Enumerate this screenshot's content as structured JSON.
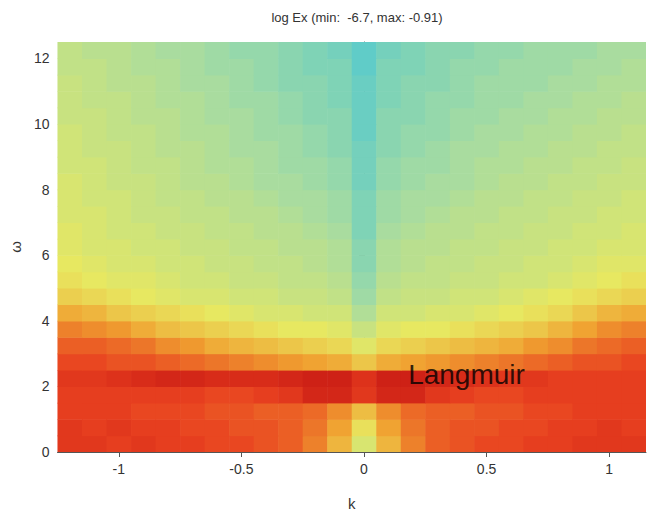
{
  "chart_data": {
    "type": "heatmap",
    "title": "log Ex (min:  -6.7, max: -0.91)",
    "x_label": "k",
    "y_label": "ω",
    "x": [
      -1.2,
      -1.1,
      -1.0,
      -0.9,
      -0.8,
      -0.7,
      -0.6,
      -0.5,
      -0.4,
      -0.3,
      -0.2,
      -0.1,
      0.0,
      0.1,
      0.2,
      0.3,
      0.4,
      0.5,
      0.6,
      0.7,
      0.8,
      0.9,
      1.0,
      1.1
    ],
    "y": [
      0.25,
      0.75,
      1.25,
      1.75,
      2.25,
      2.75,
      3.25,
      3.75,
      4.25,
      4.75,
      5.25,
      5.75,
      6.25,
      6.75,
      7.25,
      7.75,
      8.25,
      8.75,
      9.25,
      9.75,
      10.25,
      10.75,
      11.25,
      11.75,
      12.25
    ],
    "cells": [
      [
        -1.6,
        -1.6,
        -1.7,
        -1.6,
        -1.7,
        -1.7,
        -1.8,
        -1.8,
        -1.9,
        -2.0,
        -2.3,
        -2.8,
        -3.6,
        -2.8,
        -2.3,
        -2.0,
        -1.9,
        -1.8,
        -1.8,
        -1.7,
        -1.7,
        -1.6,
        -1.6,
        -1.6
      ],
      [
        -1.6,
        -1.7,
        -1.6,
        -1.7,
        -1.7,
        -1.8,
        -1.8,
        -1.9,
        -1.9,
        -2.0,
        -2.2,
        -2.6,
        -3.3,
        -2.6,
        -2.2,
        -2.0,
        -1.9,
        -1.9,
        -1.8,
        -1.8,
        -1.7,
        -1.7,
        -1.6,
        -1.7
      ],
      [
        -1.7,
        -1.7,
        -1.7,
        -1.8,
        -1.8,
        -1.8,
        -1.9,
        -1.9,
        -2.0,
        -2.0,
        -2.1,
        -2.4,
        -2.9,
        -2.4,
        -2.1,
        -2.0,
        -2.0,
        -1.9,
        -1.9,
        -1.8,
        -1.8,
        -1.7,
        -1.7,
        -1.7
      ],
      [
        -1.7,
        -1.7,
        -1.7,
        -1.7,
        -1.7,
        -1.7,
        -1.8,
        -1.8,
        -1.7,
        -1.6,
        -1.3,
        -1.3,
        -1.6,
        -1.3,
        -1.3,
        -1.6,
        -1.7,
        -1.8,
        -1.8,
        -1.7,
        -1.7,
        -1.7,
        -1.7,
        -1.7
      ],
      [
        -1.6,
        -1.6,
        -1.5,
        -1.4,
        -1.3,
        -1.3,
        -1.4,
        -1.4,
        -1.4,
        -1.3,
        -1.2,
        -1.2,
        -1.5,
        -1.2,
        -1.2,
        -1.3,
        -1.4,
        -1.5,
        -1.6,
        -1.6,
        -1.7,
        -1.7,
        -1.7,
        -1.7
      ],
      [
        -1.8,
        -1.8,
        -1.9,
        -1.9,
        -2.0,
        -2.1,
        -2.2,
        -2.3,
        -2.4,
        -2.5,
        -2.6,
        -2.7,
        -3.0,
        -2.7,
        -2.6,
        -2.5,
        -2.4,
        -2.3,
        -2.2,
        -2.1,
        -2.0,
        -1.9,
        -1.9,
        -1.8
      ],
      [
        -2.0,
        -2.0,
        -2.1,
        -2.2,
        -2.4,
        -2.5,
        -2.7,
        -2.8,
        -2.9,
        -3.0,
        -3.1,
        -3.2,
        -3.5,
        -3.2,
        -3.1,
        -3.0,
        -2.9,
        -2.8,
        -2.7,
        -2.5,
        -2.4,
        -2.2,
        -2.1,
        -2.0
      ],
      [
        -2.3,
        -2.4,
        -2.5,
        -2.7,
        -2.9,
        -3.0,
        -3.1,
        -3.2,
        -3.3,
        -3.4,
        -3.4,
        -3.5,
        -3.8,
        -3.5,
        -3.4,
        -3.4,
        -3.3,
        -3.2,
        -3.1,
        -3.0,
        -2.8,
        -2.6,
        -2.4,
        -2.3
      ],
      [
        -2.7,
        -2.8,
        -3.0,
        -3.1,
        -3.2,
        -3.3,
        -3.4,
        -3.5,
        -3.6,
        -3.6,
        -3.7,
        -3.7,
        -4.1,
        -3.7,
        -3.7,
        -3.6,
        -3.6,
        -3.5,
        -3.4,
        -3.3,
        -3.2,
        -3.0,
        -2.8,
        -2.7
      ],
      [
        -3.1,
        -3.2,
        -3.3,
        -3.4,
        -3.5,
        -3.6,
        -3.6,
        -3.7,
        -3.7,
        -3.8,
        -3.8,
        -3.9,
        -4.3,
        -3.9,
        -3.8,
        -3.8,
        -3.7,
        -3.7,
        -3.6,
        -3.5,
        -3.4,
        -3.3,
        -3.2,
        -3.1
      ],
      [
        -3.3,
        -3.4,
        -3.5,
        -3.5,
        -3.6,
        -3.7,
        -3.7,
        -3.8,
        -3.8,
        -3.9,
        -3.9,
        -4.0,
        -4.4,
        -4.0,
        -3.9,
        -3.9,
        -3.8,
        -3.8,
        -3.7,
        -3.7,
        -3.6,
        -3.5,
        -3.4,
        -3.3
      ],
      [
        -3.4,
        -3.5,
        -3.6,
        -3.6,
        -3.7,
        -3.7,
        -3.8,
        -3.8,
        -3.9,
        -3.9,
        -4.0,
        -4.1,
        -4.5,
        -4.1,
        -4.0,
        -3.9,
        -3.9,
        -3.8,
        -3.8,
        -3.7,
        -3.7,
        -3.6,
        -3.5,
        -3.5
      ],
      [
        -3.5,
        -3.6,
        -3.6,
        -3.7,
        -3.7,
        -3.8,
        -3.8,
        -3.9,
        -3.9,
        -4.0,
        -4.0,
        -4.1,
        -4.5,
        -4.1,
        -4.0,
        -4.0,
        -3.9,
        -3.9,
        -3.8,
        -3.8,
        -3.7,
        -3.7,
        -3.6,
        -3.6
      ],
      [
        -3.5,
        -3.6,
        -3.7,
        -3.7,
        -3.8,
        -3.8,
        -3.9,
        -3.9,
        -4.0,
        -4.0,
        -4.1,
        -4.2,
        -4.6,
        -4.2,
        -4.1,
        -4.0,
        -4.0,
        -3.9,
        -3.9,
        -3.8,
        -3.8,
        -3.7,
        -3.7,
        -3.6
      ],
      [
        -3.6,
        -3.6,
        -3.7,
        -3.8,
        -3.8,
        -3.9,
        -3.9,
        -4.0,
        -4.0,
        -4.1,
        -4.2,
        -4.3,
        -4.6,
        -4.3,
        -4.2,
        -4.1,
        -4.0,
        -4.0,
        -3.9,
        -3.9,
        -3.8,
        -3.8,
        -3.7,
        -3.7
      ],
      [
        -3.6,
        -3.7,
        -3.7,
        -3.8,
        -3.9,
        -3.9,
        -4.0,
        -4.0,
        -4.1,
        -4.2,
        -4.2,
        -4.3,
        -4.6,
        -4.3,
        -4.2,
        -4.2,
        -4.1,
        -4.0,
        -4.0,
        -3.9,
        -3.9,
        -3.8,
        -3.8,
        -3.7
      ],
      [
        -3.6,
        -3.7,
        -3.8,
        -3.8,
        -3.9,
        -4.0,
        -4.0,
        -4.1,
        -4.2,
        -4.2,
        -4.3,
        -4.4,
        -4.7,
        -4.4,
        -4.3,
        -4.2,
        -4.2,
        -4.1,
        -4.0,
        -4.0,
        -3.9,
        -3.9,
        -3.8,
        -3.8
      ],
      [
        -3.7,
        -3.7,
        -3.8,
        -3.9,
        -3.9,
        -4.0,
        -4.1,
        -4.1,
        -4.2,
        -4.3,
        -4.3,
        -4.4,
        -4.7,
        -4.4,
        -4.3,
        -4.3,
        -4.2,
        -4.1,
        -4.1,
        -4.0,
        -4.0,
        -3.9,
        -3.9,
        -3.8
      ],
      [
        -3.7,
        -3.8,
        -3.8,
        -3.9,
        -4.0,
        -4.0,
        -4.1,
        -4.2,
        -4.2,
        -4.3,
        -4.4,
        -4.5,
        -4.7,
        -4.5,
        -4.4,
        -4.3,
        -4.2,
        -4.2,
        -4.1,
        -4.1,
        -4.0,
        -4.0,
        -3.9,
        -3.9
      ],
      [
        -3.7,
        -3.8,
        -3.9,
        -3.9,
        -4.0,
        -4.1,
        -4.1,
        -4.2,
        -4.3,
        -4.3,
        -4.4,
        -4.5,
        -4.8,
        -4.5,
        -4.4,
        -4.4,
        -4.3,
        -4.2,
        -4.2,
        -4.1,
        -4.1,
        -4.0,
        -4.0,
        -3.9
      ],
      [
        -3.8,
        -3.8,
        -3.9,
        -4.0,
        -4.0,
        -4.1,
        -4.2,
        -4.2,
        -4.3,
        -4.4,
        -4.5,
        -4.5,
        -4.8,
        -4.5,
        -4.5,
        -4.4,
        -4.3,
        -4.3,
        -4.2,
        -4.2,
        -4.1,
        -4.1,
        -4.0,
        -4.0
      ],
      [
        -3.8,
        -3.9,
        -3.9,
        -4.0,
        -4.1,
        -4.1,
        -4.2,
        -4.3,
        -4.3,
        -4.4,
        -4.5,
        -4.6,
        -4.8,
        -4.6,
        -4.5,
        -4.4,
        -4.4,
        -4.3,
        -4.3,
        -4.2,
        -4.2,
        -4.1,
        -4.1,
        -4.0
      ],
      [
        -3.8,
        -3.9,
        -4.0,
        -4.0,
        -4.1,
        -4.2,
        -4.2,
        -4.3,
        -4.4,
        -4.5,
        -4.5,
        -4.6,
        -4.8,
        -4.6,
        -4.5,
        -4.5,
        -4.4,
        -4.3,
        -4.3,
        -4.3,
        -4.2,
        -4.2,
        -4.1,
        -4.1
      ],
      [
        -3.9,
        -3.9,
        -4.0,
        -4.1,
        -4.1,
        -4.2,
        -4.3,
        -4.3,
        -4.4,
        -4.5,
        -4.6,
        -4.6,
        -4.9,
        -4.6,
        -4.6,
        -4.5,
        -4.4,
        -4.4,
        -4.3,
        -4.3,
        -4.3,
        -4.2,
        -4.2,
        -4.1
      ],
      [
        -3.9,
        -4.0,
        -4.0,
        -4.1,
        -4.2,
        -4.2,
        -4.3,
        -4.4,
        -4.4,
        -4.5,
        -4.6,
        -4.7,
        -4.9,
        -4.7,
        -4.6,
        -4.5,
        -4.5,
        -4.4,
        -4.4,
        -4.3,
        -4.3,
        -4.3,
        -4.2,
        -4.2
      ]
    ],
    "color_range": [
      -6.7,
      -0.91
    ],
    "xlim": [
      -1.25,
      1.15
    ],
    "ylim": [
      0,
      12.5
    ],
    "xticks": [
      -1,
      -0.5,
      0,
      0.5,
      1
    ],
    "yticks": [
      0,
      2,
      4,
      6,
      8,
      10,
      12
    ],
    "annotations": [
      {
        "text": "Langmuir",
        "x": 0.18,
        "y": 2.35
      }
    ],
    "grid": false
  }
}
